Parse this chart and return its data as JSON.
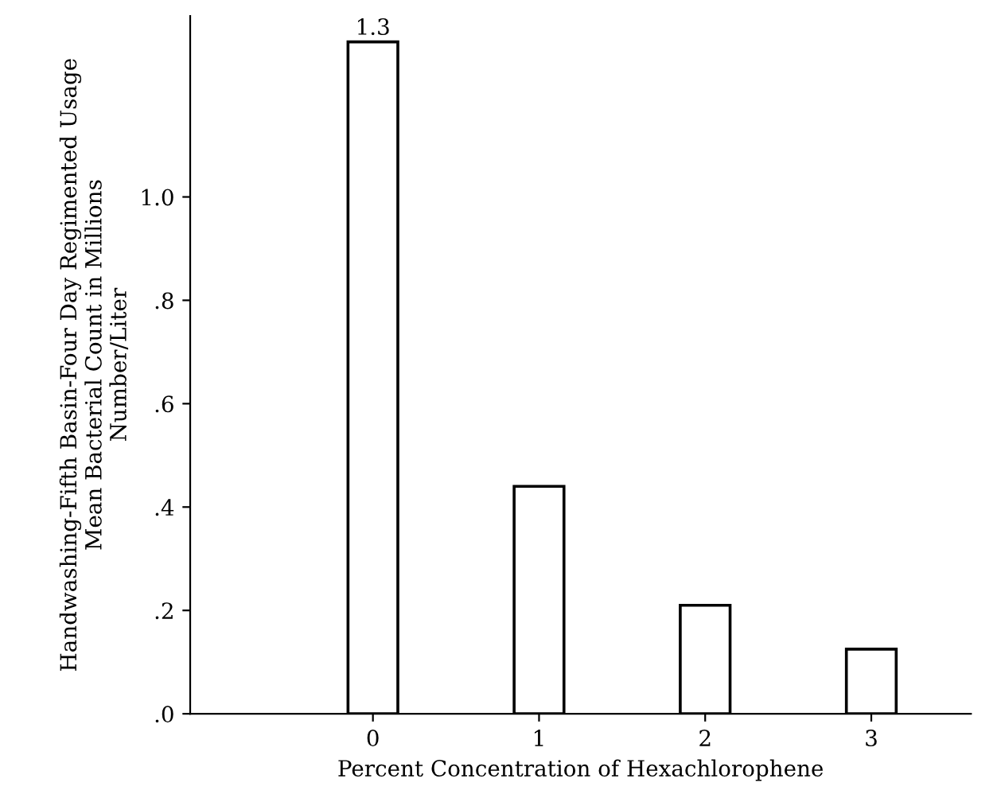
{
  "chart_data": {
    "type": "bar",
    "xlabel": "Percent Concentration of Hexachlorophene",
    "ylabel": "Handwashing-Fifth Basin-Four Day Regimented Usage\nMean Bacterial Count in Millions\nNumber/Liter",
    "categories": [
      "0",
      "1",
      "2",
      "3"
    ],
    "values": [
      1.3,
      0.44,
      0.21,
      0.125
    ],
    "value_labels": [
      "1.3",
      null,
      null,
      null
    ],
    "color": "#ffffff",
    "ylim": [
      0,
      1.35
    ],
    "yticks": [
      {
        "value": 0,
        "label": ".0"
      },
      {
        "value": 0.2,
        "label": ".2"
      },
      {
        "value": 0.4,
        "label": ".4"
      },
      {
        "value": 0.6,
        "label": ".6"
      },
      {
        "value": 0.8,
        "label": ".8"
      },
      {
        "value": 1.0,
        "label": "1.0"
      }
    ],
    "grid": false,
    "legend": false
  }
}
